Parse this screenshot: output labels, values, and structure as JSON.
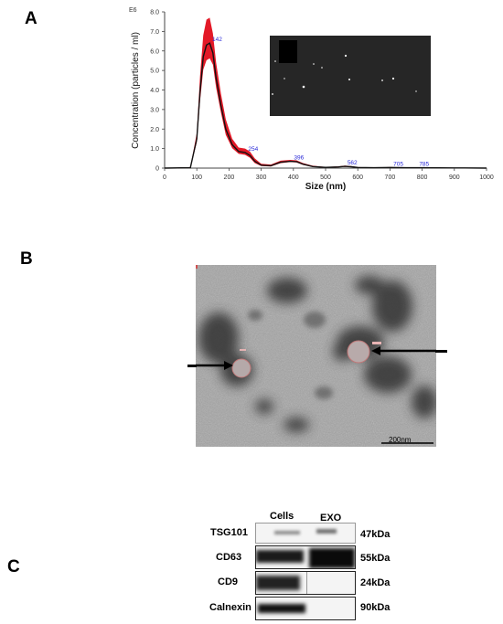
{
  "panels": {
    "a": "A",
    "b": "B",
    "c": "C"
  },
  "chart_data": {
    "type": "line",
    "exponent_label": "E6",
    "xlabel": "Size (nm)",
    "ylabel": "Concentration (particles / ml)",
    "xlim": [
      0,
      1000
    ],
    "ylim": [
      0,
      8
    ],
    "x_ticks": [
      0,
      100,
      200,
      300,
      400,
      500,
      600,
      700,
      800,
      900,
      1000
    ],
    "y_ticks": [
      "0",
      "1.0",
      "2.0",
      "3.0",
      "4.0",
      "5.0",
      "6.0",
      "7.0",
      "8.0"
    ],
    "series": [
      {
        "x": [
          0,
          80,
          100,
          110,
          120,
          130,
          140,
          150,
          160,
          175,
          190,
          210,
          230,
          250,
          265,
          280,
          300,
          330,
          360,
          390,
          410,
          430,
          460,
          500,
          540,
          560,
          580,
          600,
          650,
          700,
          750,
          800,
          900,
          1000
        ],
        "y": [
          0,
          0.02,
          1.5,
          3.9,
          5.7,
          6.3,
          6.4,
          5.9,
          4.6,
          3.2,
          2.0,
          1.2,
          0.85,
          0.8,
          0.65,
          0.35,
          0.15,
          0.12,
          0.3,
          0.35,
          0.33,
          0.2,
          0.08,
          0.04,
          0.06,
          0.09,
          0.07,
          0.03,
          0.02,
          0.03,
          0.02,
          0.02,
          0.01,
          0
        ],
        "upper": [
          0,
          0.05,
          1.8,
          4.7,
          6.8,
          7.6,
          7.7,
          6.9,
          5.4,
          3.8,
          2.5,
          1.5,
          1.05,
          1.0,
          0.85,
          0.5,
          0.22,
          0.18,
          0.38,
          0.42,
          0.4,
          0.26,
          0.12,
          0.06,
          0.09,
          0.13,
          0.1,
          0.05,
          0.03,
          0.05,
          0.03,
          0.03,
          0.02,
          0
        ]
      }
    ],
    "peak_labels": [
      {
        "x": 142,
        "y": 6.4,
        "text": "142"
      },
      {
        "x": 254,
        "y": 0.8,
        "text": "254"
      },
      {
        "x": 396,
        "y": 0.35,
        "text": "396"
      },
      {
        "x": 562,
        "y": 0.09,
        "text": "562"
      },
      {
        "x": 705,
        "y": 0.03,
        "text": "705"
      },
      {
        "x": 785,
        "y": 0.02,
        "text": "785"
      }
    ],
    "colors": {
      "line": "#111111",
      "band": "#e0000f",
      "peak_label": "#2a2ad8"
    }
  },
  "tem": {
    "scale_bar_label": "200nm"
  },
  "western_blot": {
    "columns": [
      "Cells",
      "EXO"
    ],
    "rows": [
      {
        "marker": "TSG101",
        "weight": "47kDa"
      },
      {
        "marker": "CD63",
        "weight": "55kDa"
      },
      {
        "marker": "CD9",
        "weight": "24kDa"
      },
      {
        "marker": "Calnexin",
        "weight": "90kDa"
      }
    ]
  }
}
